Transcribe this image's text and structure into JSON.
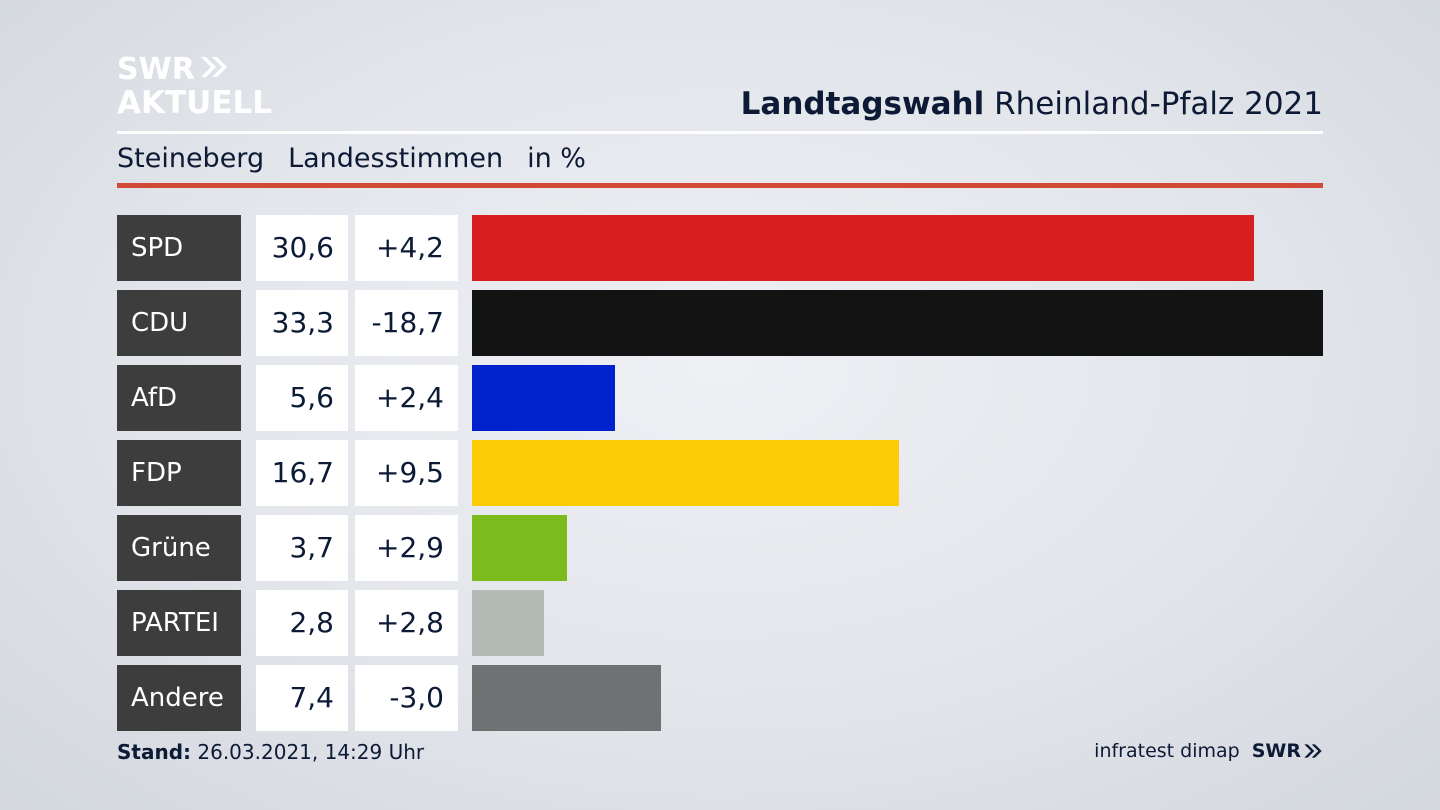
{
  "logo": {
    "line1": "SWR",
    "line2": "AKTUELL"
  },
  "header": {
    "title_bold": "Landtagswahl",
    "title_rest": "Rheinland-Pfalz 2021"
  },
  "subheader": {
    "place": "Steineberg",
    "vote_type": "Landesstimmen",
    "unit": "in %"
  },
  "chart_data": {
    "type": "bar",
    "orientation": "horizontal",
    "title": "Landtagswahl Rheinland-Pfalz 2021",
    "subtitle": "Steineberg Landesstimmen in %",
    "categories": [
      "SPD",
      "CDU",
      "AfD",
      "FDP",
      "Grüne",
      "PARTEI",
      "Andere"
    ],
    "values": [
      30.6,
      33.3,
      5.6,
      16.7,
      3.7,
      2.8,
      7.4
    ],
    "value_labels": [
      "30,6",
      "33,3",
      "5,6",
      "16,7",
      "3,7",
      "2,8",
      "7,4"
    ],
    "change_labels": [
      "+4,2",
      "-18,7",
      "+2,4",
      "+9,5",
      "+2,9",
      "+2,8",
      "-3,0"
    ],
    "colors": [
      "#d71f20",
      "#131313",
      "#0022cc",
      "#fdcc07",
      "#7bbb1b",
      "#b4bbb6",
      "#707172"
    ],
    "xlim": [
      0,
      33.3
    ]
  },
  "footer": {
    "stand_label": "Stand:",
    "stand_value": "26.03.2021, 14:29 Uhr",
    "source": "infratest dimap",
    "brand": "SWR"
  }
}
